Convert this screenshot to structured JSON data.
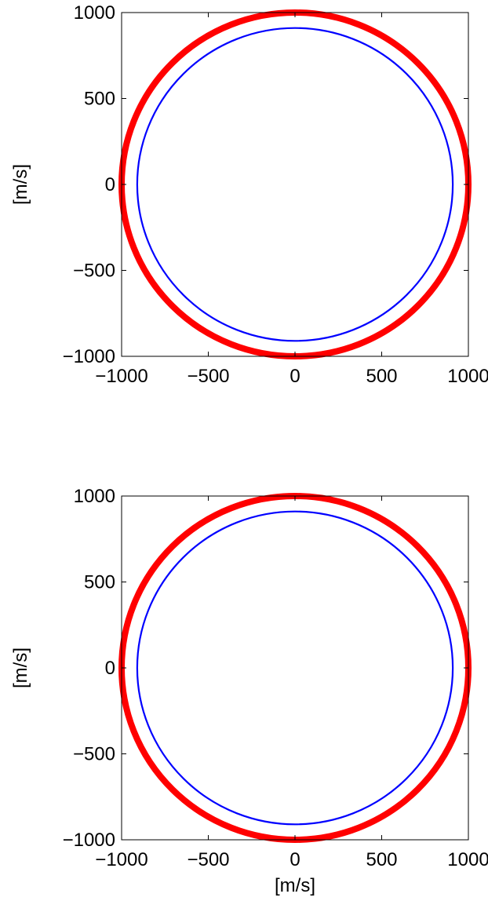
{
  "chart_data": [
    {
      "type": "line",
      "xlabel": "",
      "ylabel": "[m/s]",
      "xlim": [
        -1000,
        1000
      ],
      "ylim": [
        -1000,
        1000
      ],
      "xticks": [
        -1000,
        -500,
        0,
        500,
        1000
      ],
      "yticks": [
        -1000,
        -500,
        0,
        500,
        1000
      ],
      "xtick_labels": [
        "−1000",
        "−500",
        "0",
        "500",
        "1000"
      ],
      "ytick_labels": [
        "−1000",
        "−500",
        "0",
        "500",
        "1000"
      ],
      "grid": false,
      "series": [
        {
          "shape": "circle",
          "radius": 1000,
          "color": "#ff0000",
          "stroke": "thick"
        },
        {
          "shape": "circle",
          "radius": 910,
          "color": "#0000ff",
          "stroke": "thin"
        }
      ]
    },
    {
      "type": "line",
      "xlabel": "[m/s]",
      "ylabel": "[m/s]",
      "xlim": [
        -1000,
        1000
      ],
      "ylim": [
        -1000,
        1000
      ],
      "xticks": [
        -1000,
        -500,
        0,
        500,
        1000
      ],
      "yticks": [
        -1000,
        -500,
        0,
        500,
        1000
      ],
      "xtick_labels": [
        "−1000",
        "−500",
        "0",
        "500",
        "1000"
      ],
      "ytick_labels": [
        "−1000",
        "−500",
        "0",
        "500",
        "1000"
      ],
      "grid": false,
      "series": [
        {
          "shape": "circle",
          "radius": 1000,
          "color": "#ff0000",
          "stroke": "thick"
        },
        {
          "shape": "circle",
          "radius": 910,
          "color": "#0000ff",
          "stroke": "thin"
        }
      ]
    }
  ]
}
